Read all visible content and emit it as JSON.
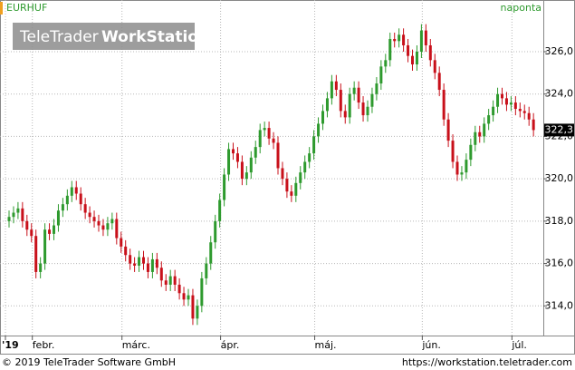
{
  "chart_data": {
    "type": "candlestick",
    "symbol": "EURHUF",
    "period": "naponta",
    "logo": {
      "brand": "TeleTrader",
      "product": "WorkStation"
    },
    "footer": {
      "copyright": "© 2019 TeleTrader Software GmbH",
      "url": "https://workstation.teletrader.com"
    },
    "last_price": {
      "value": 322.3,
      "label": "322,3"
    },
    "up_color": "#2e9a2e",
    "down_color": "#c8101a",
    "grid": true,
    "ylim": [
      312.6,
      328.44
    ],
    "yticks": [
      {
        "value": 314,
        "label": "314,0"
      },
      {
        "value": 316,
        "label": "316,0"
      },
      {
        "value": 318,
        "label": "318,0"
      },
      {
        "value": 320,
        "label": "320,0"
      },
      {
        "value": 322,
        "label": "322,0"
      },
      {
        "value": 324,
        "label": "324,0"
      },
      {
        "value": 326,
        "label": "326,0"
      }
    ],
    "categories": [
      "'19",
      null,
      null,
      null,
      null,
      null,
      "febr.",
      null,
      null,
      null,
      null,
      null,
      null,
      null,
      null,
      null,
      null,
      null,
      null,
      null,
      null,
      null,
      null,
      null,
      null,
      null,
      "márc.",
      null,
      null,
      null,
      null,
      null,
      null,
      null,
      null,
      null,
      null,
      null,
      null,
      null,
      null,
      null,
      null,
      null,
      null,
      null,
      null,
      null,
      "ápr.",
      null,
      null,
      null,
      null,
      null,
      null,
      null,
      null,
      null,
      null,
      null,
      null,
      null,
      null,
      null,
      null,
      null,
      null,
      null,
      null,
      "máj.",
      null,
      null,
      null,
      null,
      null,
      null,
      null,
      null,
      null,
      null,
      null,
      null,
      null,
      null,
      null,
      null,
      null,
      null,
      null,
      null,
      null,
      null,
      null,
      "jún.",
      null,
      null,
      null,
      null,
      null,
      null,
      null,
      null,
      null,
      null,
      null,
      null,
      null,
      null,
      null,
      null,
      null,
      null,
      null,
      "júl.",
      null,
      null,
      null,
      null
    ],
    "open": [
      318.0,
      318.2,
      318.4,
      318.6,
      318.0,
      317.6,
      317.3,
      315.6,
      316.0,
      317.6,
      317.4,
      317.8,
      318.5,
      318.8,
      319.2,
      319.6,
      319.3,
      318.8,
      318.4,
      318.2,
      318.0,
      317.8,
      317.6,
      317.9,
      318.1,
      317.2,
      316.8,
      316.4,
      316.0,
      315.9,
      316.3,
      316.0,
      315.6,
      316.2,
      315.8,
      315.2,
      315.0,
      315.4,
      315.0,
      314.6,
      314.3,
      314.5,
      313.4,
      314.0,
      315.3,
      316.0,
      317.0,
      318.0,
      319.0,
      320.2,
      321.4,
      321.2,
      320.8,
      320.0,
      320.3,
      321.0,
      321.5,
      322.3,
      322.4,
      321.9,
      321.7,
      320.5,
      320.0,
      319.4,
      319.2,
      319.8,
      320.3,
      320.8,
      321.2,
      322.0,
      322.6,
      323.2,
      323.8,
      324.6,
      324.2,
      323.2,
      322.9,
      324.0,
      324.3,
      323.6,
      323.0,
      323.4,
      324.0,
      324.5,
      325.3,
      325.6,
      326.6,
      326.5,
      326.8,
      326.3,
      325.8,
      325.4,
      326.0,
      327.0,
      326.3,
      325.6,
      325.0,
      324.2,
      322.8,
      321.8,
      320.8,
      320.2,
      320.3,
      320.9,
      321.6,
      322.2,
      322.0,
      322.6,
      323.0,
      323.4,
      324.0,
      323.8,
      323.5,
      323.6,
      323.3,
      323.2,
      323.1,
      322.8
    ],
    "high": [
      318.5,
      318.7,
      318.9,
      318.9,
      318.3,
      317.9,
      317.6,
      316.3,
      317.9,
      317.9,
      318.1,
      318.8,
      319.1,
      319.5,
      319.9,
      319.9,
      319.6,
      319.1,
      318.7,
      318.5,
      318.3,
      318.1,
      318.2,
      318.4,
      318.4,
      317.5,
      317.1,
      316.7,
      316.3,
      316.6,
      316.6,
      316.3,
      316.5,
      316.5,
      316.1,
      315.5,
      315.7,
      315.7,
      315.3,
      314.9,
      314.8,
      314.8,
      314.3,
      315.6,
      316.3,
      317.3,
      318.3,
      319.3,
      320.5,
      321.7,
      321.7,
      321.5,
      321.1,
      320.6,
      321.3,
      321.8,
      322.6,
      322.7,
      322.7,
      322.2,
      322.0,
      320.8,
      320.3,
      319.7,
      320.1,
      320.6,
      321.1,
      321.5,
      322.3,
      322.9,
      323.5,
      324.1,
      324.9,
      324.9,
      324.5,
      323.5,
      324.3,
      324.6,
      324.6,
      323.9,
      323.7,
      324.3,
      324.8,
      325.6,
      325.9,
      326.9,
      326.9,
      327.1,
      327.1,
      326.6,
      326.1,
      326.3,
      327.3,
      327.3,
      326.6,
      325.9,
      325.3,
      324.5,
      323.1,
      322.1,
      321.1,
      320.6,
      321.2,
      321.9,
      322.5,
      322.5,
      322.9,
      323.3,
      323.7,
      324.3,
      324.3,
      324.1,
      323.9,
      323.9,
      323.6,
      323.5,
      323.4,
      323.1
    ],
    "low": [
      317.7,
      317.9,
      318.1,
      317.7,
      317.3,
      317.0,
      315.3,
      315.3,
      315.7,
      317.1,
      317.1,
      317.5,
      318.2,
      318.5,
      318.9,
      319.0,
      318.5,
      318.1,
      317.9,
      317.7,
      317.5,
      317.3,
      317.3,
      317.6,
      316.9,
      316.5,
      316.1,
      315.7,
      315.6,
      315.6,
      315.7,
      315.3,
      315.3,
      315.5,
      314.9,
      314.7,
      314.7,
      314.7,
      314.3,
      314.0,
      314.0,
      313.1,
      313.1,
      313.7,
      315.0,
      315.7,
      316.7,
      317.7,
      318.7,
      319.9,
      320.9,
      320.5,
      319.7,
      319.7,
      320.0,
      320.7,
      321.2,
      322.0,
      321.6,
      321.4,
      320.2,
      319.7,
      319.1,
      318.9,
      318.9,
      319.5,
      320.0,
      320.5,
      320.9,
      321.7,
      322.3,
      322.9,
      323.5,
      323.9,
      322.9,
      322.6,
      322.6,
      323.7,
      323.3,
      322.7,
      322.7,
      323.1,
      323.7,
      324.2,
      325.0,
      325.3,
      326.2,
      326.2,
      326.0,
      325.5,
      325.1,
      325.1,
      325.7,
      326.0,
      325.3,
      324.7,
      323.9,
      322.5,
      321.5,
      320.5,
      319.9,
      319.9,
      320.0,
      320.6,
      321.3,
      321.7,
      321.7,
      322.3,
      322.7,
      323.1,
      323.5,
      323.2,
      323.2,
      323.0,
      322.9,
      322.8,
      322.5,
      322.0
    ],
    "close": [
      318.2,
      318.4,
      318.6,
      318.0,
      317.6,
      317.3,
      315.6,
      316.0,
      317.6,
      317.4,
      317.8,
      318.5,
      318.8,
      319.2,
      319.6,
      319.3,
      318.8,
      318.4,
      318.2,
      318.0,
      317.8,
      317.6,
      317.9,
      318.1,
      317.2,
      316.8,
      316.4,
      316.0,
      315.9,
      316.3,
      316.0,
      315.6,
      316.2,
      315.8,
      315.2,
      315.0,
      315.4,
      315.0,
      314.6,
      314.3,
      314.5,
      313.4,
      314.0,
      315.3,
      316.0,
      317.0,
      318.0,
      319.0,
      320.2,
      321.4,
      321.2,
      320.8,
      320.0,
      320.3,
      321.0,
      321.5,
      322.3,
      322.4,
      321.9,
      321.7,
      320.5,
      320.0,
      319.4,
      319.2,
      319.8,
      320.3,
      320.8,
      321.2,
      322.0,
      322.6,
      323.2,
      323.8,
      324.6,
      324.2,
      323.2,
      322.9,
      324.0,
      324.3,
      323.6,
      323.0,
      323.4,
      324.0,
      324.5,
      325.3,
      325.6,
      326.6,
      326.5,
      326.8,
      326.3,
      325.8,
      325.4,
      326.0,
      327.0,
      326.3,
      325.6,
      325.0,
      324.2,
      322.8,
      321.8,
      320.8,
      320.2,
      320.3,
      320.9,
      321.6,
      322.2,
      322.0,
      322.6,
      323.0,
      323.4,
      324.0,
      323.8,
      323.5,
      323.6,
      323.3,
      323.2,
      323.1,
      322.8,
      322.3
    ]
  }
}
